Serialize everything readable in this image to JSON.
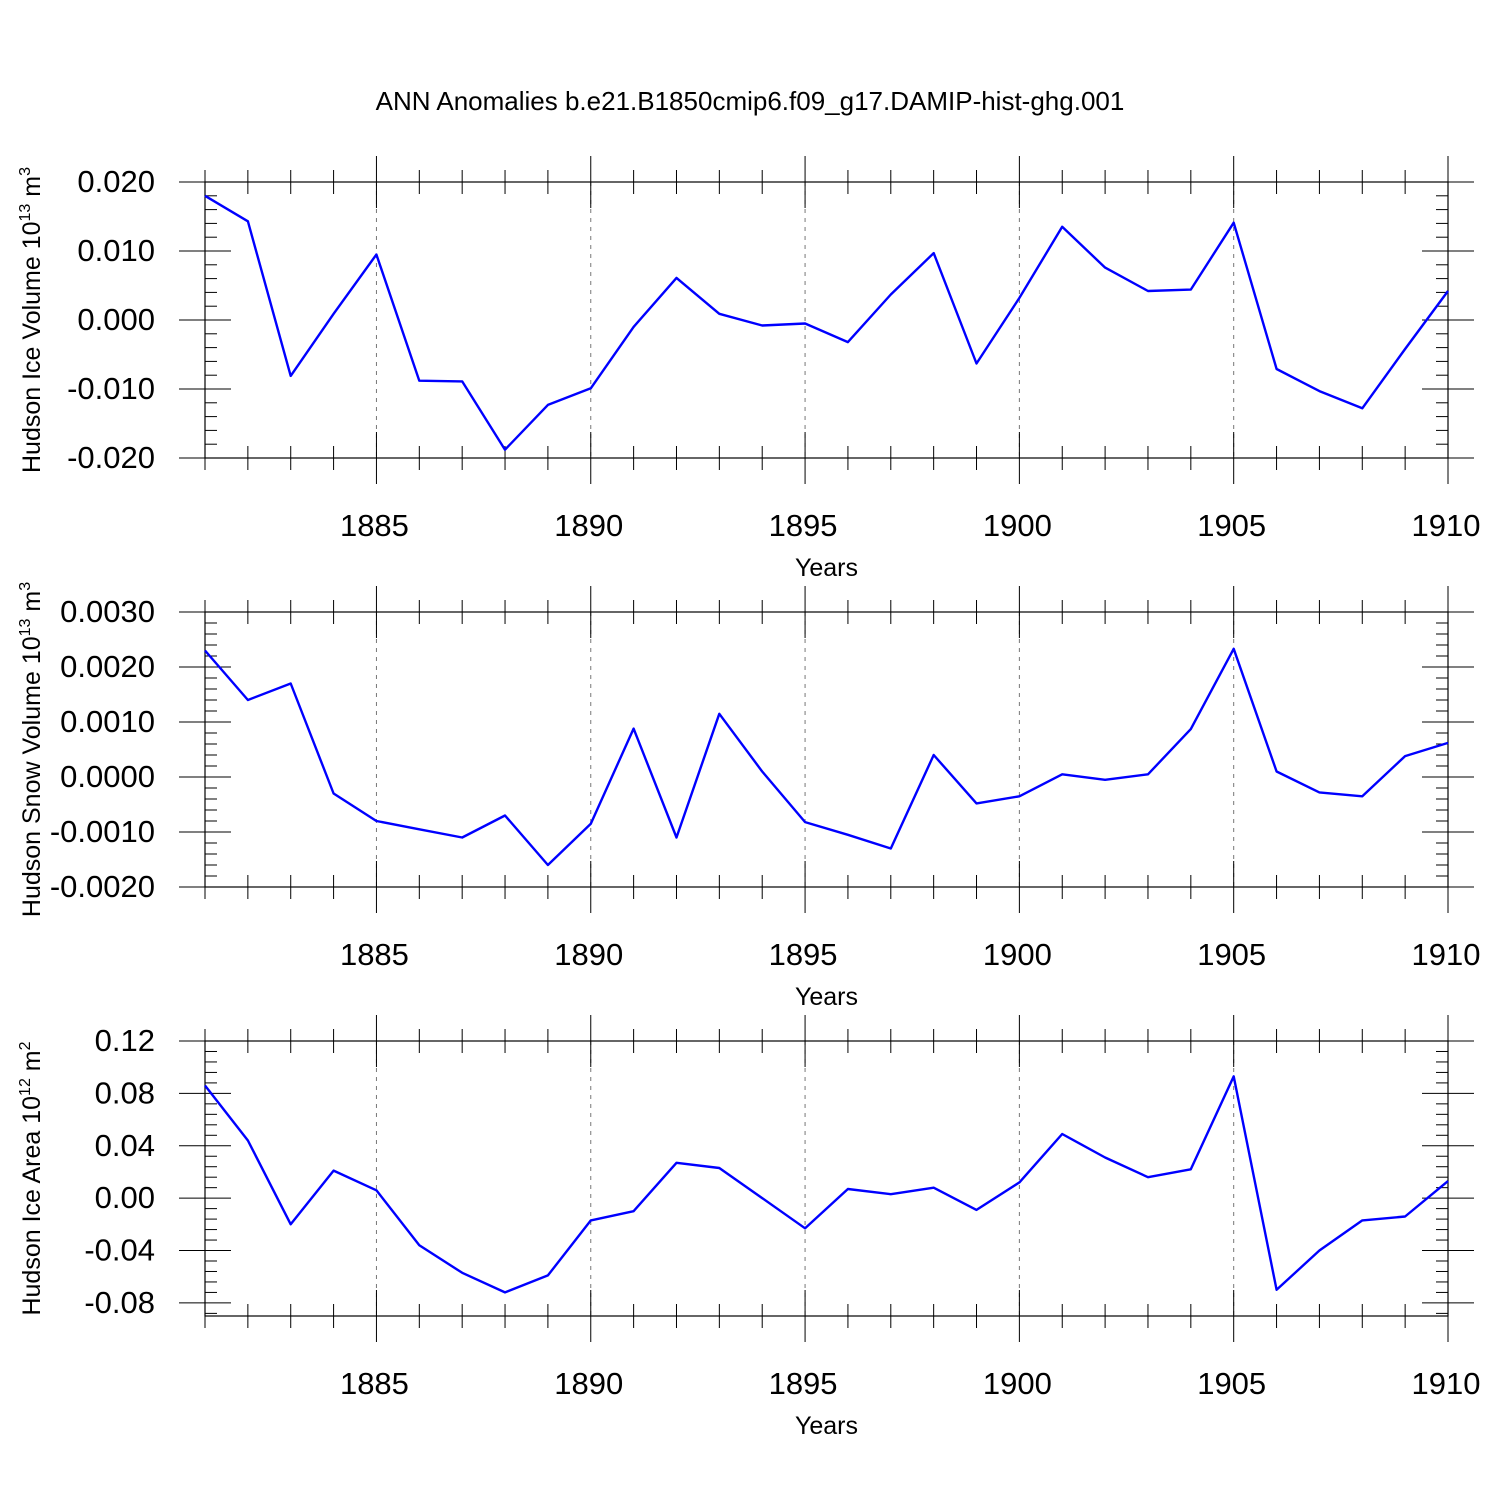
{
  "title": "ANN Anomalies b.e21.B1850cmip6.f09_g17.DAMIP-hist-ghg.001",
  "colors": {
    "line": "#0000ff",
    "axis": "#000000",
    "grid": "#777777"
  },
  "chart_data": [
    {
      "type": "line",
      "ylabel": "Hudson Ice Volume 10",
      "ylabel_exp": "13",
      "ylabel_unit": "m",
      "ylabel_unit_exp": "3",
      "xlabel": "Years",
      "xlim": [
        1881,
        1910
      ],
      "ylim": [
        -0.02,
        0.02
      ],
      "yticks": [
        -0.02,
        -0.01,
        0.0,
        0.01,
        0.02
      ],
      "ytick_labels": [
        "-0.020",
        "-0.010",
        "0.000",
        "0.010",
        "0.020"
      ],
      "xticks": [
        1885,
        1890,
        1895,
        1900,
        1905,
        1910
      ],
      "xtick_labels": [
        "1885",
        "1890",
        "1895",
        "1900",
        "1905",
        "1910"
      ],
      "grid": "dashed vertical at major x ticks",
      "x": [
        1881,
        1882,
        1883,
        1884,
        1885,
        1886,
        1887,
        1888,
        1889,
        1890,
        1891,
        1892,
        1893,
        1894,
        1895,
        1896,
        1897,
        1898,
        1899,
        1900,
        1901,
        1902,
        1903,
        1904,
        1905,
        1906,
        1907,
        1908,
        1909,
        1910
      ],
      "series": [
        {
          "values": [
            0.018,
            0.0143,
            -0.0081,
            0.0009,
            0.0095,
            -0.0088,
            -0.0089,
            -0.0188,
            -0.0123,
            -0.0099,
            -0.001,
            0.0061,
            0.0009,
            -0.0008,
            -0.0005,
            -0.0032,
            0.0037,
            0.0097,
            -0.0063,
            0.0032,
            0.0135,
            0.0076,
            0.0042,
            0.0044,
            0.0141,
            -0.0071,
            -0.0103,
            -0.0128,
            -0.0042,
            0.0042
          ]
        }
      ]
    },
    {
      "type": "line",
      "ylabel": "Hudson Snow Volume 10",
      "ylabel_exp": "13",
      "ylabel_unit": "m",
      "ylabel_unit_exp": "3",
      "xlabel": "Years",
      "xlim": [
        1881,
        1910
      ],
      "ylim": [
        -0.002,
        0.003
      ],
      "yticks": [
        -0.002,
        -0.001,
        0.0,
        0.001,
        0.002,
        0.003
      ],
      "ytick_labels": [
        "-0.0020",
        "-0.0010",
        "0.0000",
        "0.0010",
        "0.0020",
        "0.0030"
      ],
      "xticks": [
        1885,
        1890,
        1895,
        1900,
        1905,
        1910
      ],
      "xtick_labels": [
        "1885",
        "1890",
        "1895",
        "1900",
        "1905",
        "1910"
      ],
      "grid": "dashed vertical at major x ticks",
      "x": [
        1881,
        1882,
        1883,
        1884,
        1885,
        1886,
        1887,
        1888,
        1889,
        1890,
        1891,
        1892,
        1893,
        1894,
        1895,
        1896,
        1897,
        1898,
        1899,
        1900,
        1901,
        1902,
        1903,
        1904,
        1905,
        1906,
        1907,
        1908,
        1909,
        1910
      ],
      "series": [
        {
          "values": [
            0.0023,
            0.0014,
            0.0017,
            -0.0003,
            -0.0008,
            -0.00095,
            -0.0011,
            -0.0007,
            -0.0016,
            -0.00085,
            0.00088,
            -0.0011,
            0.00115,
            0.0001,
            -0.00082,
            -0.00105,
            -0.0013,
            0.0004,
            -0.00048,
            -0.00035,
            5e-05,
            -5e-05,
            5e-05,
            0.00087,
            0.00233,
            0.0001,
            -0.00028,
            -0.00035,
            0.00038,
            0.00062
          ]
        }
      ]
    },
    {
      "type": "line",
      "ylabel": "Hudson Ice Area 10",
      "ylabel_exp": "12",
      "ylabel_unit": "m",
      "ylabel_unit_exp": "2",
      "xlabel": "Years",
      "xlim": [
        1881,
        1910
      ],
      "ylim": [
        -0.09,
        0.12
      ],
      "yticks": [
        -0.08,
        -0.04,
        0.0,
        0.04,
        0.08,
        0.12
      ],
      "ytick_labels": [
        "-0.08",
        "-0.04",
        "0.00",
        "0.04",
        "0.08",
        "0.12"
      ],
      "xticks": [
        1885,
        1890,
        1895,
        1900,
        1905,
        1910
      ],
      "xtick_labels": [
        "1885",
        "1890",
        "1895",
        "1900",
        "1905",
        "1910"
      ],
      "grid": "dashed vertical at major x ticks",
      "x": [
        1881,
        1882,
        1883,
        1884,
        1885,
        1886,
        1887,
        1888,
        1889,
        1890,
        1891,
        1892,
        1893,
        1894,
        1895,
        1896,
        1897,
        1898,
        1899,
        1900,
        1901,
        1902,
        1903,
        1904,
        1905,
        1906,
        1907,
        1908,
        1909,
        1910
      ],
      "series": [
        {
          "values": [
            0.086,
            0.044,
            -0.02,
            0.021,
            0.006,
            -0.036,
            -0.057,
            -0.072,
            -0.059,
            -0.017,
            -0.01,
            0.027,
            0.023,
            0.0,
            -0.023,
            0.007,
            0.003,
            0.008,
            -0.009,
            0.012,
            0.049,
            0.031,
            0.016,
            0.022,
            0.093,
            -0.07,
            -0.04,
            -0.017,
            -0.014,
            0.013
          ]
        }
      ]
    }
  ]
}
